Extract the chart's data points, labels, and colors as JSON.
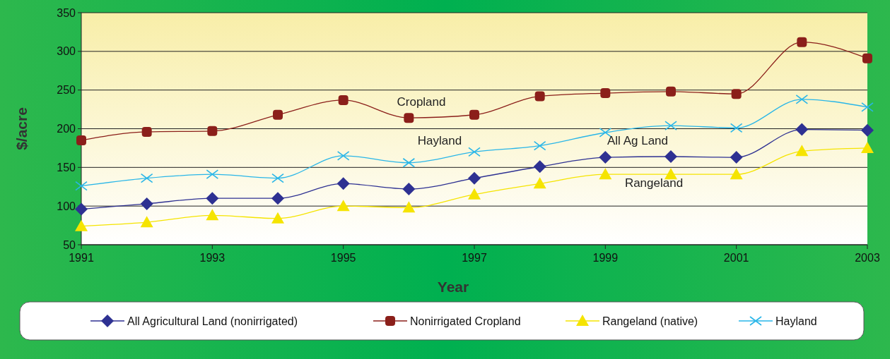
{
  "chart_data": {
    "type": "line",
    "xlabel": "Year",
    "ylabel": "$/acre",
    "x": [
      1991,
      1992,
      1993,
      1994,
      1995,
      1996,
      1997,
      1998,
      1999,
      2000,
      2001,
      2002,
      2003
    ],
    "series": [
      {
        "name": "All Agricultural Land (nonirrigated)",
        "color": "#2e3192",
        "marker": "diamond",
        "values": [
          96,
          103,
          110,
          110,
          129,
          122,
          136,
          151,
          163,
          164,
          163,
          199,
          198
        ]
      },
      {
        "name": "Nonirrigated Cropland",
        "color": "#8b1f1a",
        "marker": "square",
        "values": [
          185,
          196,
          197,
          218,
          237,
          214,
          218,
          242,
          246,
          248,
          245,
          312,
          291
        ]
      },
      {
        "name": "Rangeland (native)",
        "color": "#f5e400",
        "marker": "triangle",
        "values": [
          74,
          79,
          88,
          84,
          100,
          98,
          115,
          129,
          141,
          141,
          141,
          171,
          175
        ]
      },
      {
        "name": "Hayland",
        "color": "#29b6e8",
        "marker": "cross",
        "values": [
          126,
          136,
          141,
          136,
          165,
          156,
          170,
          178,
          195,
          204,
          201,
          238,
          228
        ]
      }
    ],
    "xlim": [
      1991,
      2003
    ],
    "xticks": [
      1991,
      1993,
      1995,
      1997,
      1999,
      2001,
      2003
    ],
    "ylim": [
      50,
      350
    ],
    "yticks": [
      50,
      100,
      150,
      200,
      250,
      300,
      350
    ],
    "grid": "y",
    "legend": "bottom",
    "annotations": [
      "Cropland",
      "Hayland",
      "All Ag Land",
      "Rangeland"
    ]
  }
}
